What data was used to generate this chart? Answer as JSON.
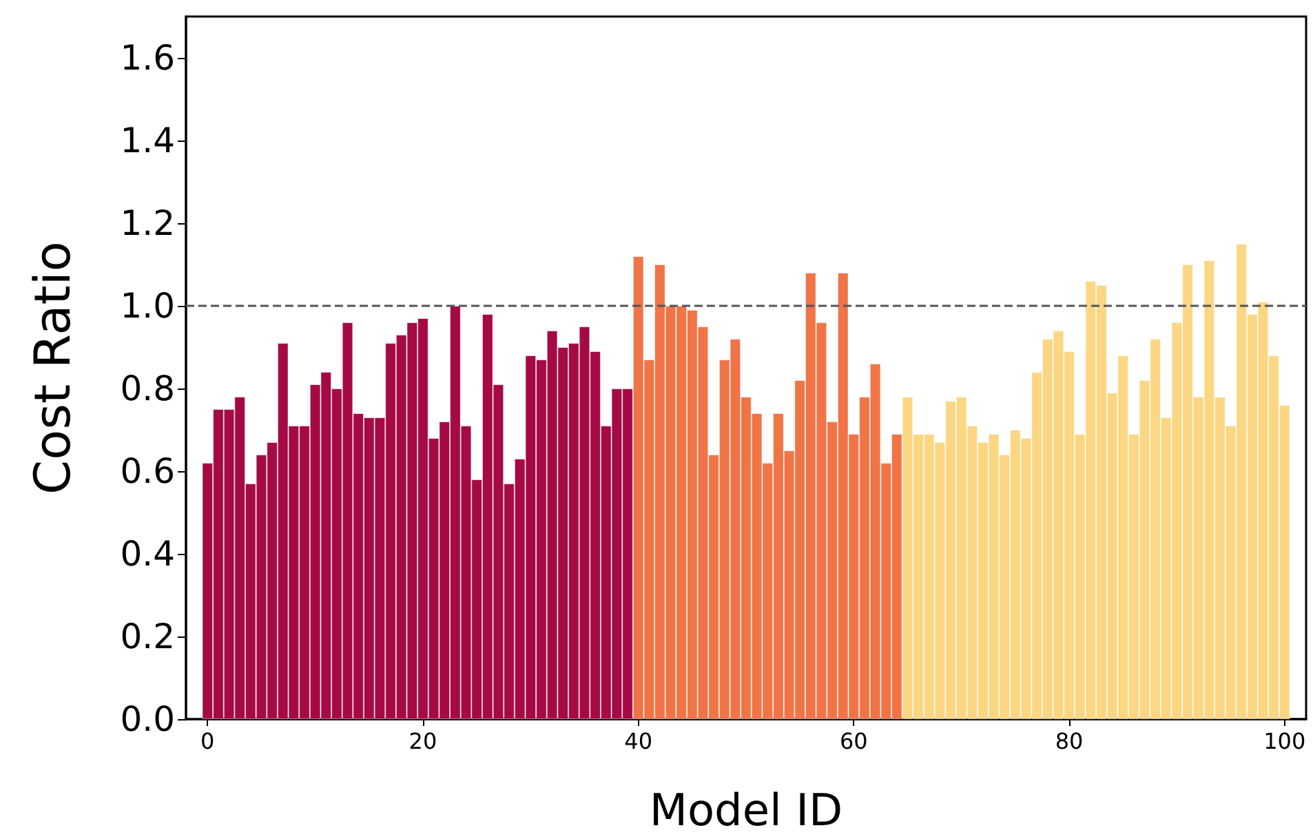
{
  "chart_data": {
    "type": "bar",
    "xlabel": "Model ID",
    "ylabel": "Cost Ratio",
    "xlim": [
      -2,
      102
    ],
    "xticks": [
      0,
      20,
      40,
      60,
      80,
      100
    ],
    "ylim": [
      0,
      1.7
    ],
    "yticks": [
      {
        "value": 0,
        "label": "0.0"
      },
      {
        "value": 0.2,
        "label": "0.2"
      },
      {
        "value": 0.4,
        "label": "0.4"
      },
      {
        "value": 0.6,
        "label": "0.6"
      },
      {
        "value": 0.8,
        "label": "0.8"
      },
      {
        "value": 1,
        "label": "1.0"
      },
      {
        "value": 1.2,
        "label": "1.2"
      },
      {
        "value": 1.4,
        "label": "1.4"
      },
      {
        "value": 1.6,
        "label": "1.6"
      }
    ],
    "grid": false,
    "ref_lines": [
      {
        "axis": "y",
        "value": 1.0,
        "color": "#555555",
        "line_style": "dashed"
      }
    ],
    "series": [
      {
        "color": "#a50a45",
        "x": [
          0,
          1,
          2,
          3,
          4,
          5,
          6,
          7,
          8,
          9,
          10,
          11,
          12,
          13,
          14,
          15,
          16,
          17,
          18,
          19,
          20,
          21,
          22,
          23,
          24,
          25,
          26,
          27,
          28,
          29,
          30,
          31,
          32,
          33,
          34,
          35,
          36,
          37,
          38,
          39
        ],
        "values": [
          0.62,
          0.75,
          0.75,
          0.78,
          0.57,
          0.64,
          0.67,
          0.91,
          0.71,
          0.71,
          0.81,
          0.84,
          0.8,
          0.96,
          0.74,
          0.73,
          0.73,
          0.91,
          0.93,
          0.96,
          0.97,
          0.68,
          0.72,
          1.0,
          0.71,
          0.58,
          0.98,
          0.81,
          0.57,
          0.63,
          0.88,
          0.87,
          0.94,
          0.9,
          0.91,
          0.95,
          0.89,
          0.71,
          0.8,
          0.8
        ]
      },
      {
        "color": "#f07446",
        "x": [
          40,
          41,
          42,
          43,
          44,
          45,
          46,
          47,
          48,
          49,
          50,
          51,
          52,
          53,
          54,
          55,
          56,
          57,
          58,
          59,
          60,
          61,
          62,
          63,
          64
        ],
        "values": [
          1.12,
          0.87,
          1.1,
          1.0,
          1.0,
          0.99,
          0.95,
          0.64,
          0.87,
          0.92,
          0.78,
          0.74,
          0.62,
          0.74,
          0.65,
          0.82,
          1.08,
          0.96,
          0.72,
          1.08,
          0.69,
          0.78,
          0.86,
          0.62,
          0.69
        ]
      },
      {
        "color": "#fbd783",
        "x": [
          65,
          66,
          67,
          68,
          69,
          70,
          71,
          72,
          73,
          74,
          75,
          76,
          77,
          78,
          79,
          80,
          81,
          82,
          83,
          84,
          85,
          86,
          87,
          88,
          89,
          90,
          91,
          92,
          93,
          94,
          95,
          96,
          97,
          98,
          99,
          100
        ],
        "values": [
          0.78,
          0.69,
          0.69,
          0.67,
          0.77,
          0.78,
          0.71,
          0.67,
          0.69,
          0.64,
          0.7,
          0.68,
          0.84,
          0.92,
          0.94,
          0.89,
          0.69,
          1.06,
          1.05,
          0.79,
          0.88,
          0.69,
          0.82,
          0.92,
          0.73,
          0.96,
          1.1,
          0.78,
          1.11,
          0.78,
          0.71,
          1.15,
          0.98,
          1.01,
          0.88,
          0.76
        ]
      }
    ]
  }
}
